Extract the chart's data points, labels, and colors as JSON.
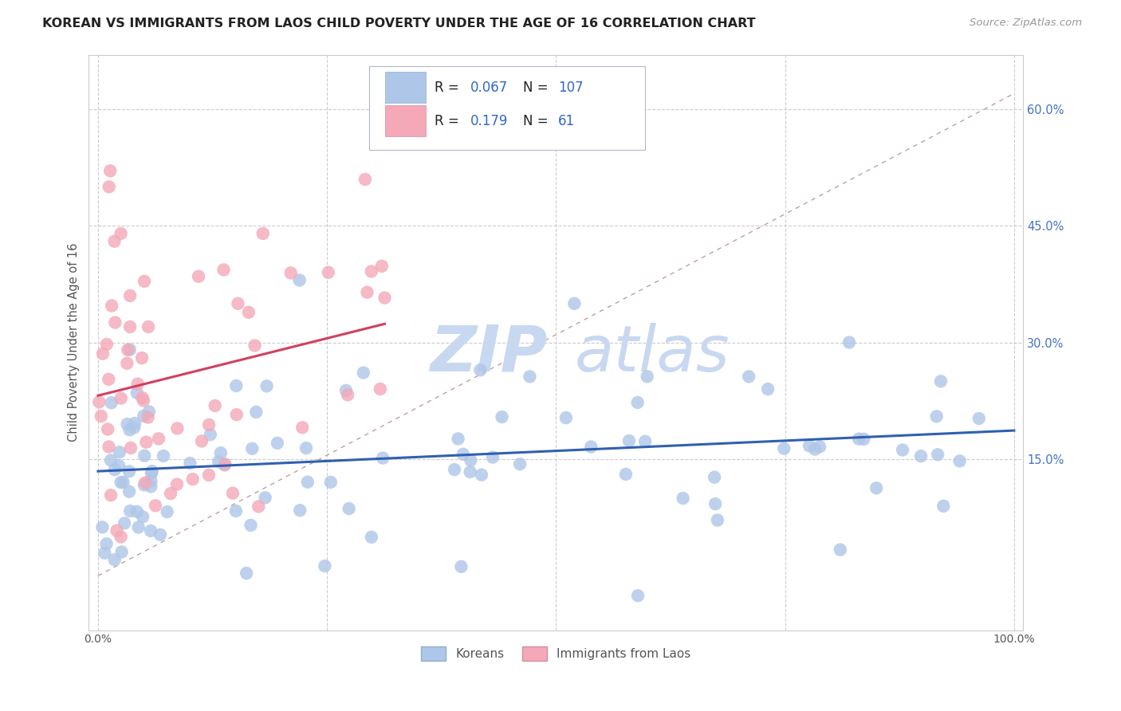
{
  "title": "KOREAN VS IMMIGRANTS FROM LAOS CHILD POVERTY UNDER THE AGE OF 16 CORRELATION CHART",
  "source": "Source: ZipAtlas.com",
  "ylabel": "Child Poverty Under the Age of 16",
  "yticklabels_right": [
    "15.0%",
    "30.0%",
    "45.0%",
    "60.0%"
  ],
  "ytick_values_right": [
    0.15,
    0.3,
    0.45,
    0.6
  ],
  "xlim": [
    -0.01,
    1.01
  ],
  "ylim": [
    -0.07,
    0.67
  ],
  "korean_R": 0.067,
  "korean_N": 107,
  "laos_R": 0.179,
  "laos_N": 61,
  "korean_color": "#aec6e8",
  "laos_color": "#f4a8b8",
  "trend_korean_color": "#3060b0",
  "trend_laos_color": "#d04060",
  "legend_label_korean": "Koreans",
  "legend_label_laos": "Immigrants from Laos",
  "background_color": "#ffffff",
  "grid_color": "#cccccc",
  "title_color": "#222222",
  "axis_label_color": "#555555",
  "right_tick_color": "#4472C4",
  "watermark_zip": "ZIP",
  "watermark_atlas": "atlas",
  "watermark_color": "#c8d8f0"
}
